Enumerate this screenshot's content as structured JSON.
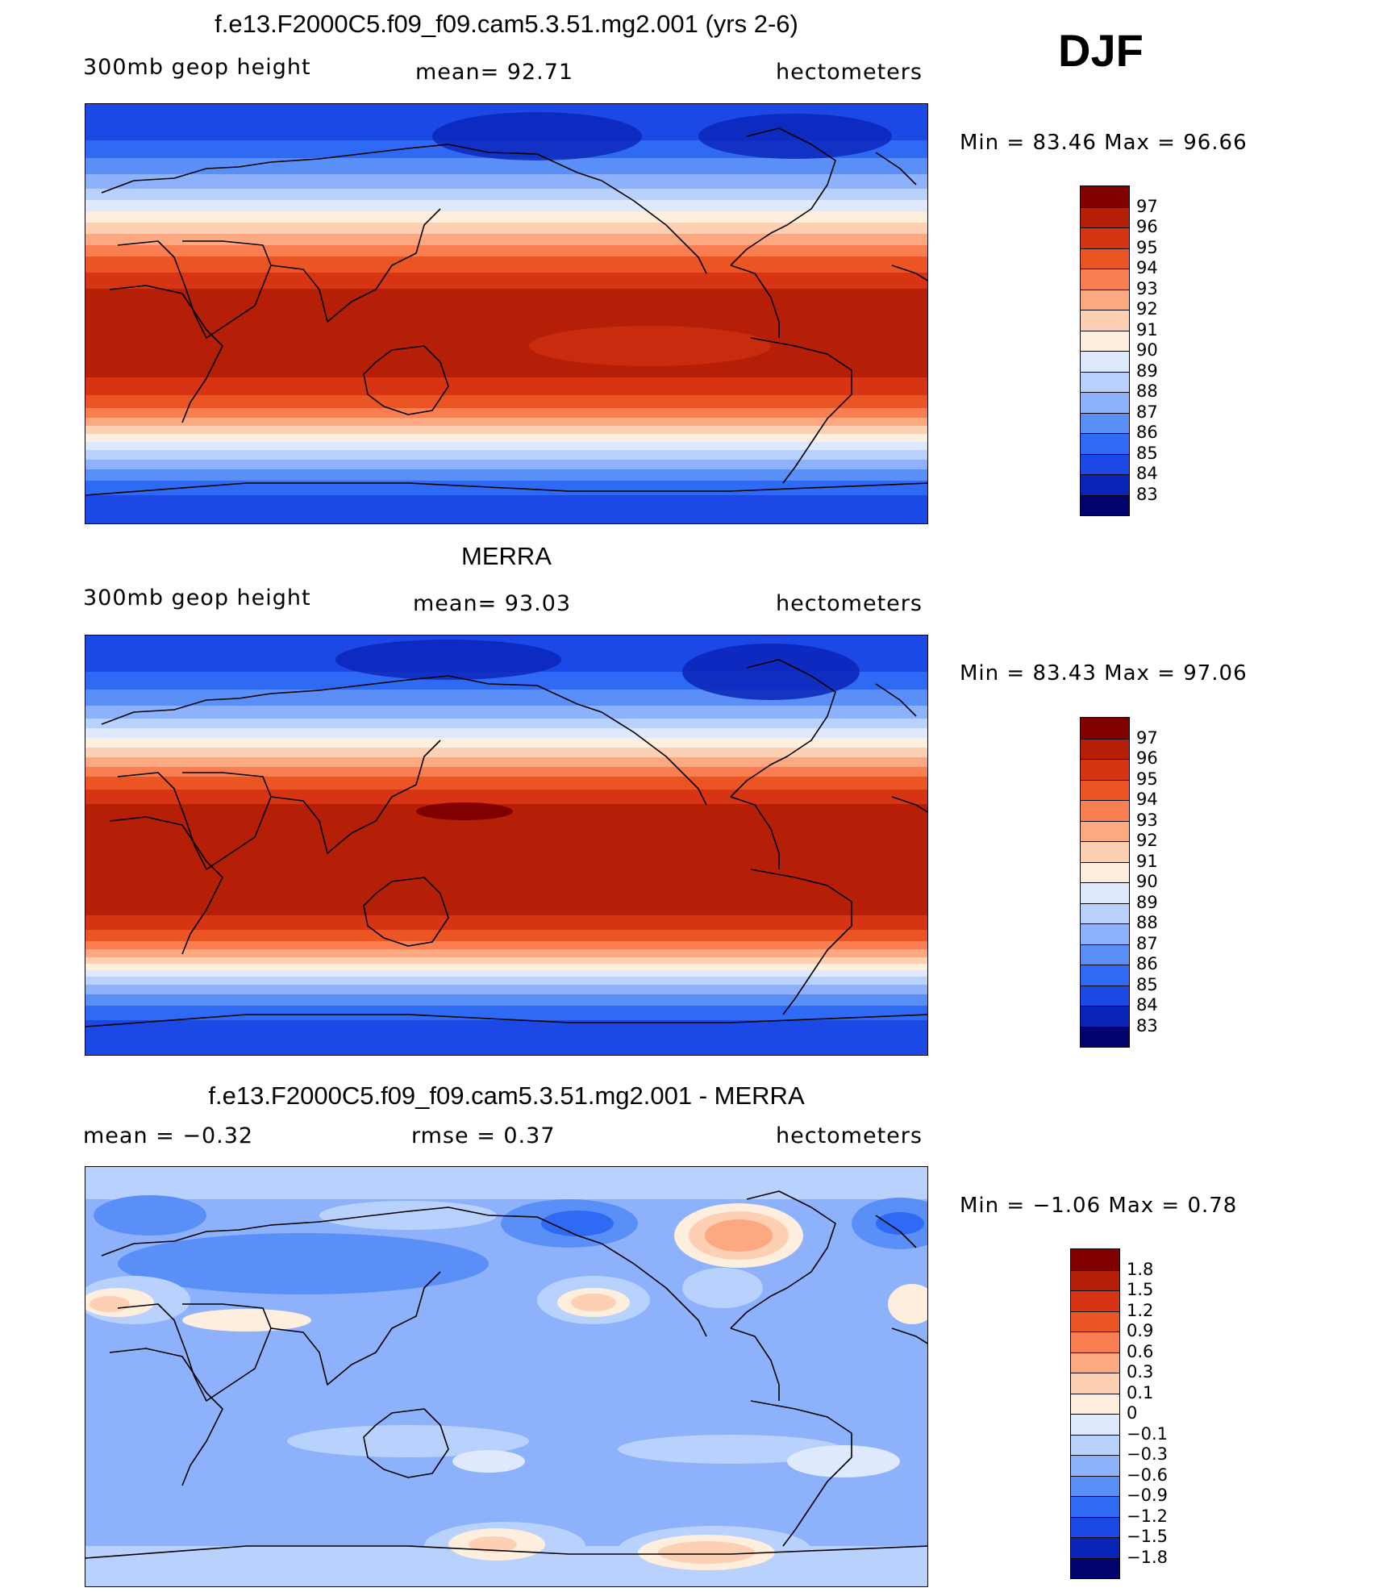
{
  "season": "DJF",
  "panels": [
    {
      "id": "model",
      "title": "f.e13.F2000C5.f09_f09.cam5.3.51.mg2.001 (yrs 2-6)",
      "left_label": "300mb  geop  height",
      "center_label": "mean=   92.71",
      "right_label": "hectometers",
      "minmax": "Min  =    83.46  Max  =    96.66",
      "colorbar": {
        "colors": [
          "#03036e",
          "#0a24b8",
          "#1c48e6",
          "#2f6af4",
          "#5b8ff8",
          "#8db2fb",
          "#b9d1fd",
          "#dfe9fd",
          "#fdeedd",
          "#fdd0b4",
          "#fca881",
          "#f97f52",
          "#eb5423",
          "#d63413",
          "#b51e07",
          "#800000"
        ],
        "labels": [
          "83",
          "84",
          "85",
          "86",
          "87",
          "88",
          "89",
          "90",
          "91",
          "92",
          "93",
          "94",
          "95",
          "96",
          "97"
        ]
      }
    },
    {
      "id": "obs",
      "title": "MERRA",
      "left_label": "300mb  geop  height",
      "center_label": "mean=   93.03",
      "right_label": "hectometers",
      "minmax": "Min  =    83.43  Max  =    97.06",
      "colorbar": {
        "colors": [
          "#03036e",
          "#0a24b8",
          "#1c48e6",
          "#2f6af4",
          "#5b8ff8",
          "#8db2fb",
          "#b9d1fd",
          "#dfe9fd",
          "#fdeedd",
          "#fdd0b4",
          "#fca881",
          "#f97f52",
          "#eb5423",
          "#d63413",
          "#b51e07",
          "#800000"
        ],
        "labels": [
          "83",
          "84",
          "85",
          "86",
          "87",
          "88",
          "89",
          "90",
          "91",
          "92",
          "93",
          "94",
          "95",
          "96",
          "97"
        ]
      }
    },
    {
      "id": "diff",
      "title": "f.e13.F2000C5.f09_f09.cam5.3.51.mg2.001 - MERRA",
      "left_label": "mean  =    −0.32",
      "center_label": "rmse  =     0.37",
      "right_label": "hectometers",
      "minmax": "Min  =    −1.06  Max  =      0.78",
      "colorbar": {
        "colors": [
          "#03036e",
          "#0a24b8",
          "#1c48e6",
          "#2f6af4",
          "#5b8ff8",
          "#8db2fb",
          "#b9d1fd",
          "#dfe9fd",
          "#fdeedd",
          "#fdd0b4",
          "#fca881",
          "#f97f52",
          "#eb5423",
          "#d63413",
          "#b51e07",
          "#800000"
        ],
        "labels": [
          "−1.8",
          "−1.5",
          "−1.2",
          "−0.9",
          "−0.6",
          "−0.3",
          "−0.1",
          "0",
          "0.1",
          "0.3",
          "0.6",
          "0.9",
          "1.2",
          "1.5",
          "1.8"
        ]
      }
    }
  ]
}
